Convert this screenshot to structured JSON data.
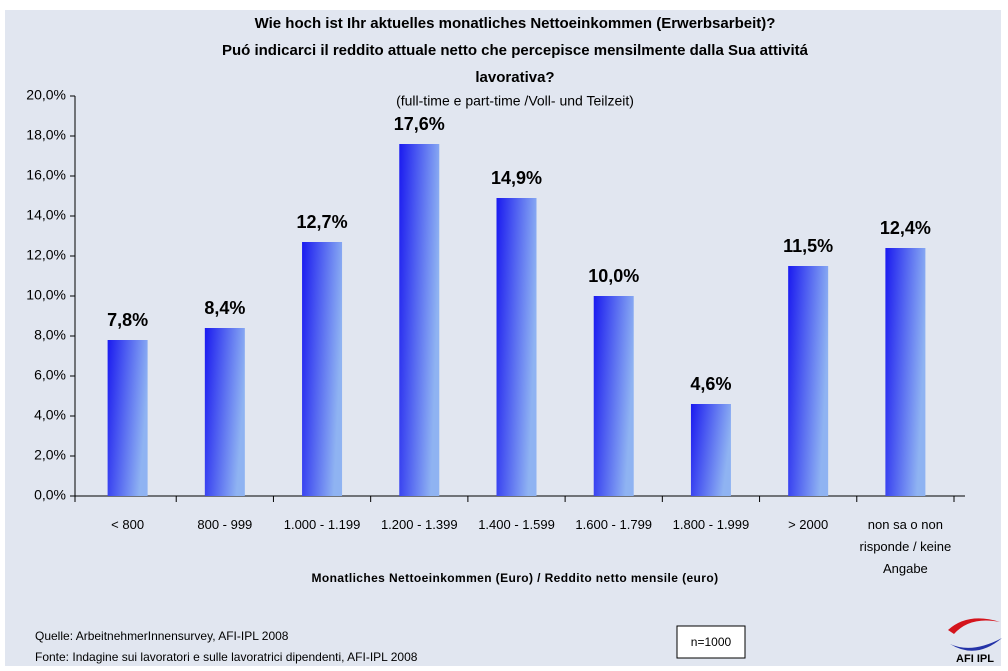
{
  "chart_data": {
    "type": "bar",
    "title": [
      "Wie hoch ist Ihr aktuelles monatliches Nettoeinkommen (Erwerbsarbeit)?",
      "Puó indicarci il reddito attuale netto che percepisce mensilmente dalla Sua attivitá",
      "lavorativa?"
    ],
    "subtitle": "(full-time e part-time /Voll- und Teilzeit)",
    "xlabel": "Monatliches Nettoeinkommen (Euro) / Reddito netto mensile (euro)",
    "categories": [
      "< 800",
      "800 - 999",
      "1.000 - 1.199",
      "1.200 - 1.399",
      "1.400 - 1.599",
      "1.600 - 1.799",
      "1.800 - 1.999",
      "> 2000",
      "non sa o non risponde / keine Angabe"
    ],
    "values": [
      7.8,
      8.4,
      12.7,
      17.6,
      14.9,
      10.0,
      4.6,
      11.5,
      12.4
    ],
    "value_labels": [
      "7,8%",
      "8,4%",
      "12,7%",
      "17,6%",
      "14,9%",
      "10,0%",
      "4,6%",
      "11,5%",
      "12,4%"
    ],
    "color": "#1f2cf5",
    "ylim": [
      0,
      20
    ],
    "yticks": [
      {
        "value": 0,
        "label": "0,0%"
      },
      {
        "value": 2,
        "label": "2,0%"
      },
      {
        "value": 4,
        "label": "4,0%"
      },
      {
        "value": 6,
        "label": "6,0%"
      },
      {
        "value": 8,
        "label": "8,0%"
      },
      {
        "value": 10,
        "label": "10,0%"
      },
      {
        "value": 12,
        "label": "12,0%"
      },
      {
        "value": 14,
        "label": "14,0%"
      },
      {
        "value": 16,
        "label": "16,0%"
      },
      {
        "value": 18,
        "label": "18,0%"
      },
      {
        "value": 20,
        "label": "20,0%"
      }
    ],
    "grid": false,
    "source": [
      "Quelle: ArbeitnehmerInnensurvey, AFI-IPL 2008",
      "Fonte: Indagine sui lavoratori e sulle lavoratrici dipendenti, AFI-IPL 2008"
    ],
    "sample": "n=1000",
    "logo": "AFI IPL"
  }
}
